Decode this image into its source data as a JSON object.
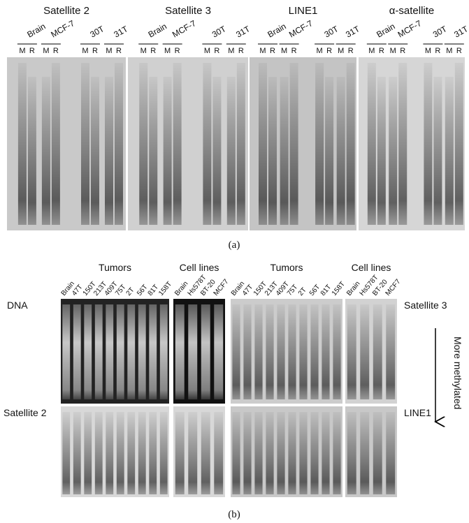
{
  "panel_a": {
    "label": "(a)",
    "blots": [
      {
        "title": "Satellite 2",
        "groups": [
          {
            "name": "Brain",
            "lanes": [
              "M",
              "R"
            ]
          },
          {
            "name": "MCF-7",
            "lanes": [
              "M",
              "R"
            ]
          },
          {
            "name": "30T",
            "lanes": [
              "M",
              "R"
            ]
          },
          {
            "name": "31T",
            "lanes": [
              "M",
              "R"
            ]
          }
        ]
      },
      {
        "title": "Satellite 3",
        "groups": [
          {
            "name": "Brain",
            "lanes": [
              "M",
              "R"
            ]
          },
          {
            "name": "MCF-7",
            "lanes": [
              "M",
              "R"
            ]
          },
          {
            "name": "30T",
            "lanes": [
              "M",
              "R"
            ]
          },
          {
            "name": "31T",
            "lanes": [
              "M",
              "R"
            ]
          }
        ]
      },
      {
        "title": "LINE1",
        "groups": [
          {
            "name": "Brain",
            "lanes": [
              "M",
              "R"
            ]
          },
          {
            "name": "MCF-7",
            "lanes": [
              "M",
              "R"
            ]
          },
          {
            "name": "30T",
            "lanes": [
              "M",
              "R"
            ]
          },
          {
            "name": "31T",
            "lanes": [
              "M",
              "R"
            ]
          }
        ]
      },
      {
        "title": "α-satellite",
        "groups": [
          {
            "name": "Brain",
            "lanes": [
              "M",
              "R"
            ]
          },
          {
            "name": "MCF-7",
            "lanes": [
              "M",
              "R"
            ]
          },
          {
            "name": "30T",
            "lanes": [
              "M",
              "R"
            ]
          },
          {
            "name": "31T",
            "lanes": [
              "M",
              "R"
            ]
          }
        ]
      }
    ]
  },
  "panel_b": {
    "label": "(b)",
    "arrow_label": "More methylated",
    "left": {
      "headers": [
        "Tumors",
        "Cell lines"
      ],
      "tumor_lanes": [
        "Brain",
        "47T",
        "150T",
        "213T",
        "409T",
        "75T",
        "2T",
        "56T",
        "81T",
        "158T"
      ],
      "cell_lanes": [
        "Brain",
        "Hs578T",
        "BT-20",
        "MCF7"
      ],
      "rows": [
        "DNA",
        "Satellite 2"
      ]
    },
    "right": {
      "headers": [
        "Tumors",
        "Cell lines"
      ],
      "tumor_lanes": [
        "Brain",
        "47T",
        "150T",
        "213T",
        "409T",
        "75T",
        "2T",
        "56T",
        "81T",
        "158T"
      ],
      "cell_lanes": [
        "Brain",
        "Hs578T",
        "BT-20",
        "MCF7"
      ],
      "rows": [
        "Satellite 3",
        "LINE1"
      ]
    }
  }
}
